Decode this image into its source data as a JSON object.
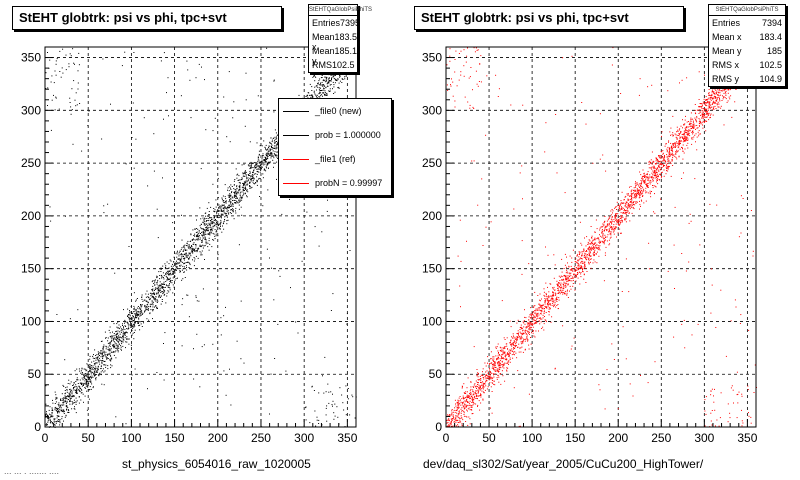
{
  "panels": [
    {
      "title": "StEHT globtrk: psi vs phi, tpc+svt",
      "color": "#000000",
      "stats": {
        "header": "StEHTQaGlobPsiPhiTS",
        "rows": [
          {
            "label": "Entries",
            "value": "7395"
          },
          {
            "label": "Mean x",
            "value": "183.5"
          },
          {
            "label": "Mean y",
            "value": "185.1"
          },
          {
            "label": "RMS x",
            "value": "102.5"
          }
        ]
      },
      "legend": [
        {
          "label": "_file0 (new)",
          "color": "#000000"
        },
        {
          "label": "prob = 1.000000",
          "color": "#000000"
        },
        {
          "label": "_file1 (ref)",
          "color": "#ff0000"
        },
        {
          "label": "probN = 0.99997",
          "color": "#ff0000"
        }
      ],
      "footer": "st_physics_6054016_raw_1020005"
    },
    {
      "title": "StEHT globtrk: psi vs phi, tpc+svt",
      "color": "#ff0000",
      "stats": {
        "header": "StEHTQaGlobPsiPhiTS",
        "rows": [
          {
            "label": "Entries",
            "value": "7394"
          },
          {
            "label": "Mean x",
            "value": "183.4"
          },
          {
            "label": "Mean y",
            "value": "185"
          },
          {
            "label": "RMS x",
            "value": "102.5"
          },
          {
            "label": "RMS y",
            "value": "104.9"
          }
        ]
      },
      "footer": "dev/daq_sl302/Sat/year_2005/CuCu200_HighTower/"
    }
  ],
  "footer_left": "... ... . .......  ....",
  "chart_data": [
    {
      "type": "scatter",
      "title": "StEHT globtrk: psi vs phi, tpc+svt",
      "xlim": [
        0,
        360
      ],
      "ylim": [
        0,
        360
      ],
      "xticks": [
        0,
        50,
        100,
        150,
        200,
        250,
        300,
        350
      ],
      "yticks": [
        0,
        50,
        100,
        150,
        200,
        250,
        300,
        350
      ],
      "grid": true,
      "series": [
        {
          "color": "#000000",
          "trend": {
            "x": [
              0,
              360
            ],
            "y": [
              0,
              360
            ]
          },
          "spread": 8
        }
      ],
      "entries": 7395
    },
    {
      "type": "scatter",
      "title": "StEHT globtrk: psi vs phi, tpc+svt",
      "xlim": [
        0,
        360
      ],
      "ylim": [
        0,
        360
      ],
      "xticks": [
        0,
        50,
        100,
        150,
        200,
        250,
        300,
        350
      ],
      "yticks": [
        0,
        50,
        100,
        150,
        200,
        250,
        300,
        350
      ],
      "grid": true,
      "series": [
        {
          "color": "#ff0000",
          "trend": {
            "x": [
              0,
              360
            ],
            "y": [
              0,
              360
            ]
          },
          "spread": 8
        }
      ],
      "entries": 7394
    }
  ]
}
